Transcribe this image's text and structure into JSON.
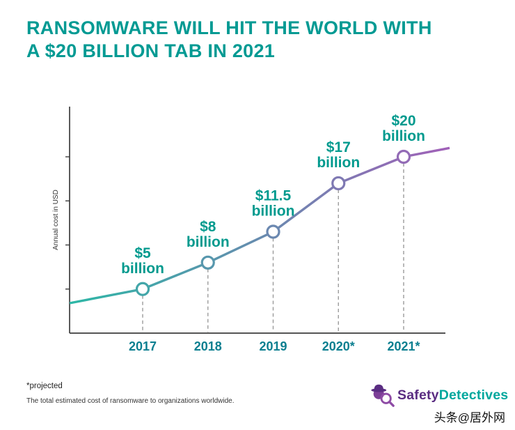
{
  "header": {
    "title_line1": "RANSOMWARE WILL HIT THE WORLD WITH",
    "title_line2": "A $20 BILLION TAB IN 2021"
  },
  "chart_data": {
    "type": "line",
    "title": "Ransomware will hit the world with a $20 billion tab in 2021",
    "categories": [
      "2017",
      "2018",
      "2019",
      "2020*",
      "2021*"
    ],
    "values": [
      5,
      8,
      11.5,
      17,
      20
    ],
    "point_labels": [
      {
        "line1": "$5",
        "line2": "billion"
      },
      {
        "line1": "$8",
        "line2": "billion"
      },
      {
        "line1": "$11.5",
        "line2": "billion"
      },
      {
        "line1": "$17",
        "line2": "billion"
      },
      {
        "line1": "$20",
        "line2": "billion"
      }
    ],
    "xlabel": "",
    "ylabel": "Annual cost in USD",
    "ylim": [
      0,
      25
    ],
    "yticks": [
      5,
      10,
      15,
      20
    ],
    "edge_values": [
      3.4,
      21
    ],
    "grid": false,
    "legend": "none",
    "line_gradient": [
      "#2db7a6",
      "#a160b8"
    ],
    "marker_style": "open-circle",
    "dropline_style": "dashed"
  },
  "footer": {
    "note1": "*projected",
    "note2": "The total estimated cost of ransomware to organizations worldwide."
  },
  "logo": {
    "part1": "Safety",
    "part2": "Detectives"
  },
  "watermark": "头条@居外网",
  "colors": {
    "title": "#009a93",
    "value_label": "#009a8e",
    "year_label": "#0c7f90",
    "axis": "#3d3d3d",
    "dashed": "#9b9b9b",
    "logo_purple": "#7d3f98",
    "logo_ring": "#8e4ba5",
    "logo_dark": "#5a2d82",
    "logo_teal": "#00a79d",
    "note": "#222222",
    "watermark": "#111111"
  }
}
